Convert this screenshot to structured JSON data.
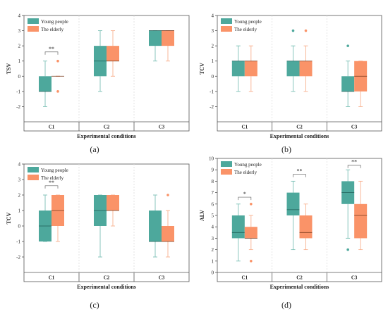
{
  "colors": {
    "young": "#4DA89C",
    "elderly": "#FA9368",
    "young_stroke": "#7CC0B6",
    "elderly_stroke": "#F8B08E"
  },
  "legend": {
    "young": "Young people",
    "elderly": "The elderly"
  },
  "chart_data": [
    {
      "type": "box",
      "panel_label": "(a)",
      "ylabel": "TSV",
      "xlabel": "Experimental conditions",
      "ylim": [
        -3,
        4
      ],
      "yticks": [
        -2,
        -1,
        0,
        1,
        2,
        3,
        4
      ],
      "categories": [
        "C1",
        "C2",
        "C3"
      ],
      "legend_position": "top-left",
      "series": [
        {
          "name": "Young people",
          "boxes": [
            {
              "min": -2,
              "q1": -1,
              "median": -1,
              "q3": 0,
              "max": 1,
              "outliers": []
            },
            {
              "min": -1,
              "q1": 0,
              "median": 1,
              "q3": 2,
              "max": 3,
              "outliers": []
            },
            {
              "min": 1,
              "q1": 2,
              "median": 3,
              "q3": 3,
              "max": 3,
              "outliers": []
            }
          ]
        },
        {
          "name": "The elderly",
          "boxes": [
            {
              "min": 0,
              "q1": 0,
              "median": 0,
              "q3": 0,
              "max": 0,
              "outliers": [
                1,
                -1
              ]
            },
            {
              "min": 0,
              "q1": 1,
              "median": 1,
              "q3": 2,
              "max": 3,
              "outliers": []
            },
            {
              "min": 1,
              "q1": 2,
              "median": 3,
              "q3": 3,
              "max": 3,
              "outliers": []
            }
          ]
        }
      ],
      "significance": [
        {
          "category": 0,
          "text": "**",
          "y": 1.6
        }
      ]
    },
    {
      "type": "box",
      "panel_label": "(b)",
      "ylabel": "TCV",
      "xlabel": "Experimental conditions",
      "ylim": [
        -3,
        4
      ],
      "yticks": [
        -2,
        -1,
        0,
        1,
        2,
        3,
        4
      ],
      "categories": [
        "C1",
        "C2",
        "C3"
      ],
      "legend_position": "top-left",
      "series": [
        {
          "name": "Young people",
          "boxes": [
            {
              "min": -1,
              "q1": 0,
              "median": 1,
              "q3": 1,
              "max": 2,
              "outliers": []
            },
            {
              "min": -1,
              "q1": 0,
              "median": 1,
              "q3": 1,
              "max": 2,
              "outliers": [
                3
              ]
            },
            {
              "min": -2,
              "q1": -1,
              "median": -1,
              "q3": 0,
              "max": 1,
              "outliers": [
                2
              ]
            }
          ]
        },
        {
          "name": "The elderly",
          "boxes": [
            {
              "min": -1,
              "q1": 0,
              "median": 1,
              "q3": 1,
              "max": 2,
              "outliers": []
            },
            {
              "min": -1,
              "q1": 0,
              "median": 1,
              "q3": 1,
              "max": 2,
              "outliers": [
                3
              ]
            },
            {
              "min": -2,
              "q1": -1,
              "median": 0,
              "q3": 1,
              "max": 1,
              "outliers": []
            }
          ]
        }
      ],
      "significance": []
    },
    {
      "type": "box",
      "panel_label": "(c)",
      "ylabel": "TCV",
      "xlabel": "Experimental conditions",
      "ylim": [
        -3,
        4
      ],
      "yticks": [
        -2,
        -1,
        0,
        1,
        2,
        3,
        4
      ],
      "categories": [
        "C1",
        "C2",
        "C3"
      ],
      "legend_position": "top-left",
      "series": [
        {
          "name": "Young people",
          "boxes": [
            {
              "min": -1,
              "q1": -1,
              "median": 0,
              "q3": 1,
              "max": 2,
              "outliers": []
            },
            {
              "min": -2,
              "q1": 0,
              "median": 1,
              "q3": 2,
              "max": 2,
              "outliers": []
            },
            {
              "min": -2,
              "q1": -1,
              "median": -1,
              "q3": 1,
              "max": 2,
              "outliers": []
            }
          ]
        },
        {
          "name": "The elderly",
          "boxes": [
            {
              "min": -1,
              "q1": 0,
              "median": 1,
              "q3": 2,
              "max": 2,
              "outliers": []
            },
            {
              "min": 0,
              "q1": 1,
              "median": 1,
              "q3": 2,
              "max": 2,
              "outliers": []
            },
            {
              "min": -2,
              "q1": -1,
              "median": -1,
              "q3": 0,
              "max": 1,
              "outliers": [
                2
              ]
            }
          ]
        }
      ],
      "significance": [
        {
          "category": 0,
          "text": "**",
          "y": 2.6
        }
      ]
    },
    {
      "type": "box",
      "panel_label": "(d)",
      "ylabel": "ALV",
      "xlabel": "Experimental conditions",
      "ylim": [
        0,
        10
      ],
      "yticks": [
        0,
        1,
        2,
        3,
        4,
        5,
        6,
        7,
        8,
        9,
        10
      ],
      "categories": [
        "C1",
        "C2",
        "C3"
      ],
      "legend_position": "top-left",
      "series": [
        {
          "name": "Young people",
          "boxes": [
            {
              "min": 1,
              "q1": 3,
              "median": 3.5,
              "q3": 5,
              "max": 6,
              "outliers": []
            },
            {
              "min": 2,
              "q1": 5,
              "median": 5.5,
              "q3": 7,
              "max": 8,
              "outliers": []
            },
            {
              "min": 3,
              "q1": 6,
              "median": 7,
              "q3": 8,
              "max": 9,
              "outliers": [
                2
              ]
            }
          ]
        },
        {
          "name": "The elderly",
          "boxes": [
            {
              "min": 2,
              "q1": 3,
              "median": 3,
              "q3": 4,
              "max": 5,
              "outliers": [
                6,
                1
              ]
            },
            {
              "min": 2,
              "q1": 3,
              "median": 3.5,
              "q3": 5,
              "max": 6,
              "outliers": []
            },
            {
              "min": 2,
              "q1": 3,
              "median": 5,
              "q3": 6,
              "max": 8,
              "outliers": []
            }
          ]
        }
      ],
      "significance": [
        {
          "category": 0,
          "text": "*",
          "y": 6.6
        },
        {
          "category": 1,
          "text": "**",
          "y": 8.6
        },
        {
          "category": 2,
          "text": "**",
          "y": 9.4
        }
      ]
    }
  ]
}
